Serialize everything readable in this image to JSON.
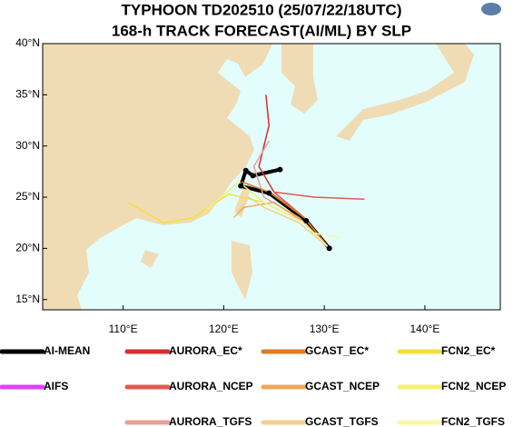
{
  "chart_data": {
    "type": "track",
    "title": "TYPHOON TD202510 (25/07/22/18UTC)",
    "subtitle": "168-h TRACK FORECAST(AI/ML) BY SLP",
    "xlim": [
      102,
      147.5
    ],
    "ylim": [
      14,
      40
    ],
    "xticks": [
      {
        "value": 110,
        "label": "110°E"
      },
      {
        "value": 120,
        "label": "120°E"
      },
      {
        "value": 130,
        "label": "130°E"
      },
      {
        "value": 140,
        "label": "140°E"
      }
    ],
    "yticks": [
      {
        "value": 15,
        "label": "15°N"
      },
      {
        "value": 20,
        "label": "20°N"
      },
      {
        "value": 25,
        "label": "25°N"
      },
      {
        "value": 30,
        "label": "30°N"
      },
      {
        "value": 35,
        "label": "35°N"
      },
      {
        "value": 40,
        "label": "40°N"
      }
    ],
    "series": [
      {
        "name": "AI-MEAN",
        "color": "#000000",
        "lon": [
          130.5,
          128.2,
          124.5,
          121.7,
          122.2,
          122.9,
          125.6
        ],
        "lat": [
          20.0,
          22.7,
          25.4,
          26.1,
          27.6,
          27.1,
          27.7
        ]
      },
      {
        "name": "AIFS",
        "color": "#e040fb",
        "lon": [],
        "lat": []
      },
      {
        "name": "AURORA_EC*",
        "color": "#d32f2f",
        "lon": [
          130.5,
          128,
          125,
          123.5,
          124.5,
          124.2
        ],
        "lat": [
          20,
          23,
          25.5,
          28,
          32,
          35
        ]
      },
      {
        "name": "AURORA_NCEP",
        "color": "#e05a4f",
        "lon": [
          130.5,
          128,
          125,
          129,
          134
        ],
        "lat": [
          20,
          23,
          25.5,
          25,
          24.8
        ]
      },
      {
        "name": "AURORA_TGFS",
        "color": "#e8a09a",
        "lon": [
          130.5,
          127.5,
          124,
          123,
          124.5
        ],
        "lat": [
          20,
          23,
          25,
          28,
          30.5
        ]
      },
      {
        "name": "GCAST_EC*",
        "color": "#e07b28",
        "lon": [
          130.5,
          128,
          124.5,
          121.8
        ],
        "lat": [
          20,
          23,
          25.5,
          26.5
        ]
      },
      {
        "name": "GCAST_NCEP",
        "color": "#eea85a",
        "lon": [
          130.5,
          128,
          125,
          122,
          121
        ],
        "lat": [
          20,
          22.5,
          24.5,
          24,
          23
        ]
      },
      {
        "name": "GCAST_TGFS",
        "color": "#f3cf8f",
        "lon": [
          130.5,
          127.5,
          124,
          122.5,
          121
        ],
        "lat": [
          20,
          22.5,
          24,
          25,
          23
        ]
      },
      {
        "name": "FCN2_EC*",
        "color": "#f2e040",
        "lon": [
          130.5,
          128,
          124,
          120.5,
          117,
          114,
          110.5
        ],
        "lat": [
          20,
          22.5,
          24.5,
          25.3,
          23,
          22.5,
          24.5
        ]
      },
      {
        "name": "FCN2_NCEP",
        "color": "#f7ef70",
        "lon": [
          130.5,
          128,
          124,
          121.5,
          118
        ],
        "lat": [
          20,
          22.5,
          24.5,
          26.5,
          23.5
        ]
      },
      {
        "name": "FCN2_TGFS",
        "color": "#fbf6a8",
        "lon": [
          130.5,
          129,
          131.5
        ],
        "lat": [
          20,
          21.5,
          21
        ]
      }
    ]
  }
}
